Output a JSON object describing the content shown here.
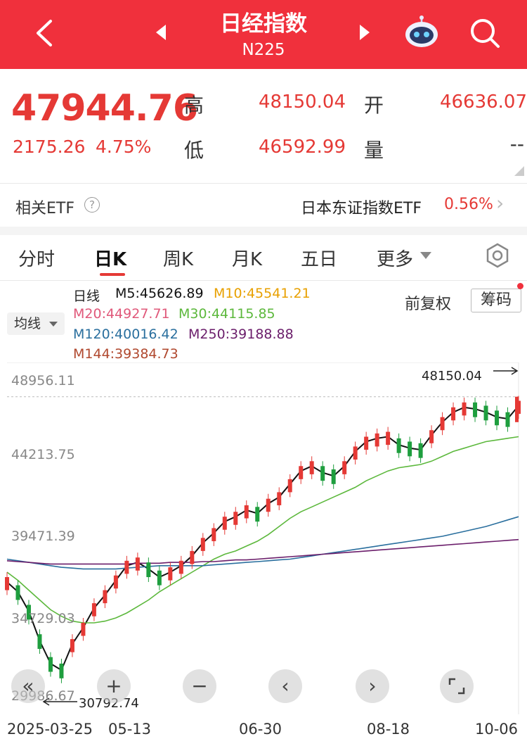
{
  "header": {
    "title": "日经指数",
    "subtitle": "N225"
  },
  "quote": {
    "price": "47944.76",
    "change": "2175.26",
    "change_pct": "4.75%",
    "high_label": "高",
    "high": "48150.04",
    "low_label": "低",
    "low": "46592.99",
    "open_label": "开",
    "open": "46636.07",
    "volume_label": "量",
    "volume": "--"
  },
  "etf": {
    "label": "相关ETF",
    "qmark": "?",
    "name": "日本东证指数ETF",
    "pct": "0.56%",
    "arrow": "›"
  },
  "tabs": [
    {
      "label": "分时"
    },
    {
      "label": "日K"
    },
    {
      "label": "周K"
    },
    {
      "label": "月K"
    },
    {
      "label": "五日"
    },
    {
      "label": "更多"
    }
  ],
  "legend": {
    "period": "日线",
    "m5": "M5:45626.89",
    "m10": "M10:45541.21",
    "m20": "M20:44927.71",
    "m30": "M30:44115.85",
    "m120": "M120:40016.42",
    "m250": "M250:39188.88",
    "m144": "M144:39384.73",
    "selector": "均线",
    "adjust": "前复权",
    "chips": "筹码"
  },
  "colors": {
    "up": "#e53935",
    "down": "#1e9e3e",
    "m5": "#111111",
    "m10": "#e8a000",
    "m20": "#e0587a",
    "m30": "#5cb83c",
    "m120": "#2a6f9e",
    "m250": "#6b1e6b",
    "m144": "#b0482e"
  },
  "chart_data": {
    "type": "line",
    "y_ticks": [
      "48956.11",
      "44213.75",
      "39471.39",
      "34729.03",
      "29986.67"
    ],
    "x_ticks": [
      "2025-03-25",
      "05-13",
      "06-30",
      "08-18",
      "10-06"
    ],
    "max_label": "48150.04",
    "min_label": "30792.74",
    "ylim": [
      29986.67,
      48956.11
    ],
    "series": [
      {
        "name": "M5",
        "values": [
          36800,
          36200,
          35000,
          33200,
          31800,
          31400,
          33000,
          34000,
          35200,
          36000,
          36900,
          37800,
          38000,
          37600,
          37100,
          37400,
          37800,
          38400,
          39200,
          39800,
          40500,
          40800,
          41200,
          41000,
          41600,
          42000,
          42800,
          43600,
          43900,
          43500,
          43300,
          43900,
          44800,
          45400,
          45600,
          45700,
          45200,
          45000,
          44900,
          45800,
          46600,
          47200,
          47500,
          47400,
          47200,
          46900,
          46800,
          47600
        ]
      },
      {
        "name": "M30",
        "values": [
          37400,
          36900,
          36300,
          35700,
          35100,
          34700,
          34400,
          34300,
          34300,
          34400,
          34600,
          34900,
          35300,
          35700,
          36200,
          36600,
          37000,
          37400,
          37800,
          38200,
          38500,
          38700,
          39000,
          39300,
          39700,
          40200,
          40700,
          41100,
          41400,
          41700,
          42000,
          42300,
          42600,
          43000,
          43300,
          43600,
          43800,
          43900,
          44000,
          44200,
          44500,
          44800,
          45000,
          45200,
          45400,
          45500,
          45600,
          45700
        ]
      },
      {
        "name": "M120",
        "values": [
          38200,
          38100,
          38000,
          37900,
          37800,
          37700,
          37650,
          37600,
          37600,
          37600,
          37600,
          37650,
          37700,
          37750,
          37800,
          37800,
          37800,
          37800,
          37800,
          37850,
          37900,
          37950,
          38000,
          38050,
          38100,
          38150,
          38200,
          38300,
          38400,
          38500,
          38600,
          38700,
          38800,
          38900,
          39000,
          39100,
          39200,
          39300,
          39400,
          39500,
          39600,
          39750,
          39900,
          40050,
          40200,
          40400,
          40600,
          40800
        ]
      },
      {
        "name": "M250",
        "values": [
          38100,
          38050,
          38000,
          37950,
          37900,
          37900,
          37900,
          37900,
          37900,
          37900,
          37900,
          37900,
          37950,
          37950,
          37950,
          38000,
          38000,
          38000,
          38050,
          38050,
          38100,
          38150,
          38150,
          38200,
          38250,
          38300,
          38350,
          38400,
          38450,
          38500,
          38550,
          38600,
          38650,
          38700,
          38750,
          38800,
          38850,
          38900,
          38950,
          39000,
          39050,
          39100,
          39150,
          39200,
          39250,
          39300,
          39350,
          39400
        ]
      }
    ]
  }
}
